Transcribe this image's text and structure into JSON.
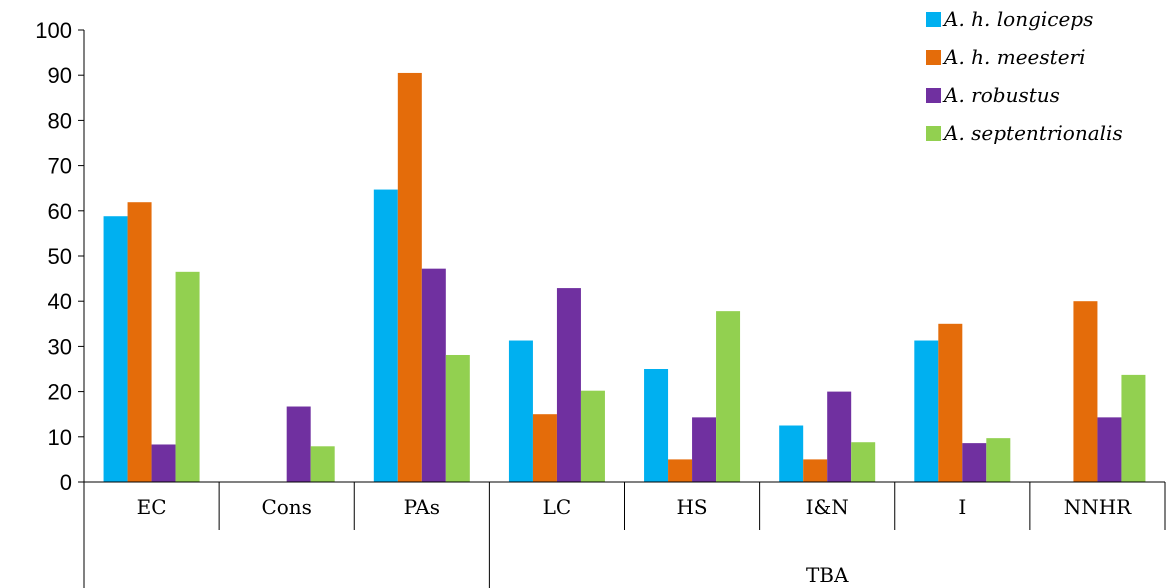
{
  "chart_data": {
    "type": "bar",
    "title": "",
    "xlabel": "",
    "ylabel": "",
    "ylim": [
      0,
      100
    ],
    "yticks": [
      0,
      10,
      20,
      30,
      40,
      50,
      60,
      70,
      80,
      90,
      100
    ],
    "categories": [
      "EC",
      "Cons",
      "PAs",
      "LC",
      "HS",
      "I&N",
      "I",
      "NNHR"
    ],
    "groups": [
      {
        "label": "",
        "categories": [
          "EC",
          "Cons",
          "PAs"
        ]
      },
      {
        "label": "TBA",
        "categories": [
          "LC",
          "HS",
          "I&N",
          "I",
          "NNHR"
        ]
      }
    ],
    "legend_position": "top-right",
    "grid": false,
    "series": [
      {
        "name": "A. h. longiceps",
        "color": "#00B0F0",
        "values": [
          58.8,
          0,
          64.7,
          31.3,
          25.0,
          12.5,
          31.3,
          0
        ]
      },
      {
        "name": "A. h. meesteri",
        "color": "#E46C0A",
        "values": [
          61.9,
          0,
          90.5,
          15.0,
          5.0,
          5.0,
          35.0,
          40.0
        ]
      },
      {
        "name": "A. robustus",
        "color": "#7030A0",
        "values": [
          8.3,
          16.7,
          47.2,
          42.9,
          14.3,
          20.0,
          8.6,
          14.3
        ]
      },
      {
        "name": "A. septentrionalis",
        "color": "#92D050",
        "values": [
          46.5,
          7.9,
          28.1,
          20.2,
          37.8,
          8.8,
          9.7,
          23.7
        ]
      }
    ]
  }
}
